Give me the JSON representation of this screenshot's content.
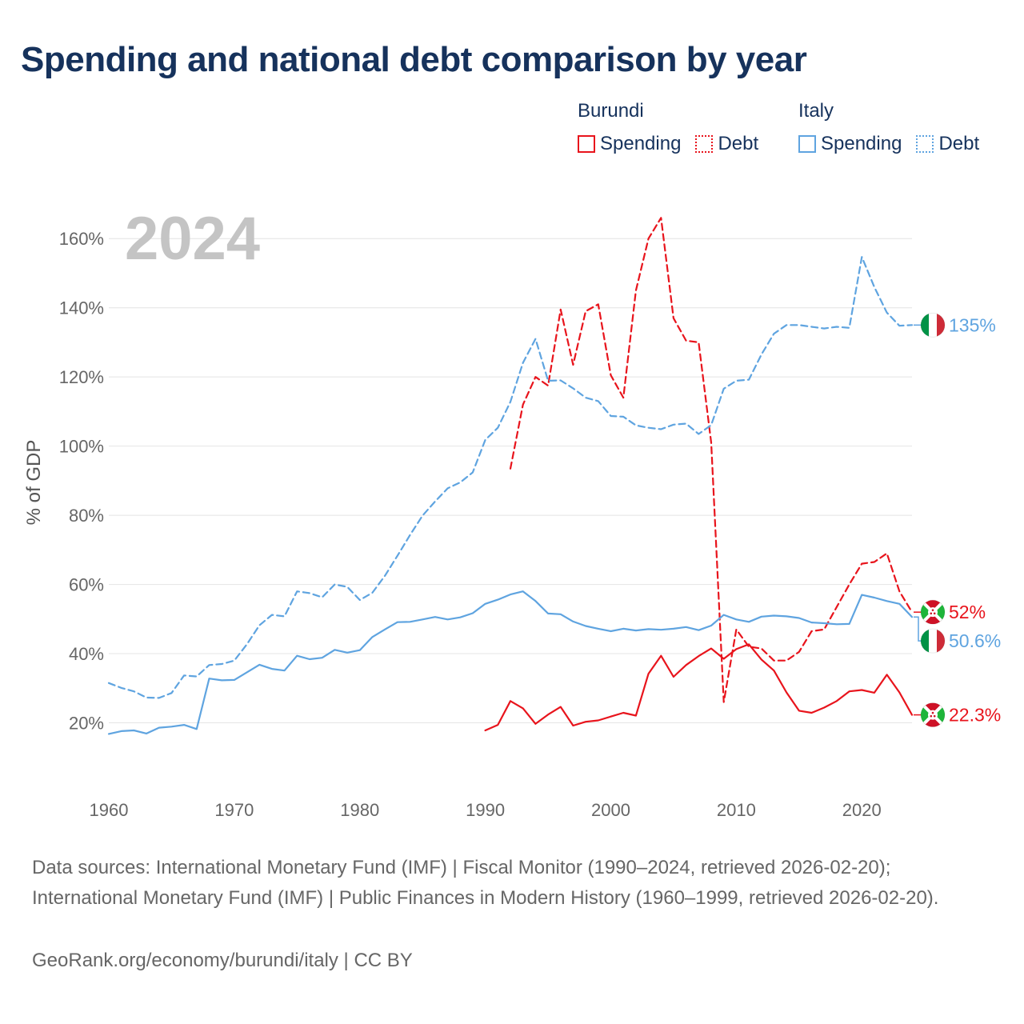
{
  "title": "Spending and national debt comparison by year",
  "legend": {
    "groups": [
      {
        "name": "Burundi",
        "color": "#e8141c",
        "items": [
          {
            "label": "Spending",
            "style": "solid"
          },
          {
            "label": "Debt",
            "style": "dotted"
          }
        ]
      },
      {
        "name": "Italy",
        "color": "#5fa4e0",
        "items": [
          {
            "label": "Spending",
            "style": "solid"
          },
          {
            "label": "Debt",
            "style": "dotted"
          }
        ]
      }
    ]
  },
  "chart_data": {
    "type": "line",
    "year_label": "2024",
    "ylabel": "% of GDP",
    "xlim": [
      1960,
      2024
    ],
    "ylim": [
      0,
      170
    ],
    "x_ticks": [
      1960,
      1970,
      1980,
      1990,
      2000,
      2010,
      2020
    ],
    "y_ticks": [
      20,
      40,
      60,
      80,
      100,
      120,
      140,
      160
    ],
    "y_tick_labels": [
      "20%",
      "40%",
      "60%",
      "80%",
      "100%",
      "120%",
      "140%",
      "160%"
    ],
    "series": [
      {
        "name": "Burundi Spending",
        "country": "Burundi",
        "metric": "Spending",
        "color": "#e8141c",
        "dash": "solid",
        "flag_icon": "burundi-flag-icon",
        "end_label": "22.3%",
        "x": [
          1990,
          1991,
          1992,
          1993,
          1994,
          1995,
          1996,
          1997,
          1998,
          1999,
          2000,
          2001,
          2002,
          2003,
          2004,
          2005,
          2006,
          2007,
          2008,
          2009,
          2010,
          2011,
          2012,
          2013,
          2014,
          2015,
          2016,
          2017,
          2018,
          2019,
          2020,
          2021,
          2022,
          2023,
          2024
        ],
        "values": [
          17.8,
          19.4,
          26.3,
          24.2,
          19.7,
          22.4,
          24.6,
          19.2,
          20.3,
          20.7,
          21.8,
          22.9,
          22.1,
          34.2,
          39.4,
          33.3,
          36.7,
          39.3,
          41.5,
          38.5,
          41.3,
          42.7,
          38.3,
          35.1,
          28.8,
          23.5,
          22.9,
          24.4,
          26.3,
          29.1,
          29.5,
          28.7,
          33.9,
          28.8,
          22.3
        ]
      },
      {
        "name": "Burundi Debt",
        "country": "Burundi",
        "metric": "Debt",
        "color": "#e8141c",
        "dash": "dashed",
        "flag_icon": "burundi-flag-icon",
        "end_label": "52%",
        "x": [
          1992,
          1993,
          1994,
          1995,
          1996,
          1997,
          1998,
          1999,
          2000,
          2001,
          2002,
          2003,
          2004,
          2005,
          2006,
          2007,
          2008,
          2009,
          2010,
          2011,
          2012,
          2013,
          2014,
          2015,
          2016,
          2017,
          2018,
          2019,
          2020,
          2021,
          2022,
          2023,
          2024
        ],
        "values": [
          93.5,
          112.0,
          120.0,
          117.5,
          139.5,
          123.5,
          139.0,
          141.0,
          120.5,
          114.0,
          145.0,
          160.0,
          166.0,
          137.0,
          130.5,
          130.0,
          101.0,
          26.0,
          47.0,
          42.0,
          41.5,
          38.0,
          38.0,
          40.5,
          46.5,
          47.0,
          53.5,
          60.0,
          66.0,
          66.5,
          69.0,
          58.0,
          52.0
        ]
      },
      {
        "name": "Italy Spending",
        "country": "Italy",
        "metric": "Spending",
        "color": "#5fa4e0",
        "dash": "solid",
        "flag_icon": "italy-flag-icon",
        "end_label": "50.6%",
        "x": [
          1960,
          1961,
          1962,
          1963,
          1964,
          1965,
          1966,
          1967,
          1968,
          1969,
          1970,
          1971,
          1972,
          1973,
          1974,
          1975,
          1976,
          1977,
          1978,
          1979,
          1980,
          1981,
          1982,
          1983,
          1984,
          1985,
          1986,
          1987,
          1988,
          1989,
          1990,
          1991,
          1992,
          1993,
          1994,
          1995,
          1996,
          1997,
          1998,
          1999,
          2000,
          2001,
          2002,
          2003,
          2004,
          2005,
          2006,
          2007,
          2008,
          2009,
          2010,
          2011,
          2012,
          2013,
          2014,
          2015,
          2016,
          2017,
          2018,
          2019,
          2020,
          2021,
          2022,
          2023,
          2024
        ],
        "values": [
          16.8,
          17.6,
          17.8,
          16.9,
          18.6,
          18.9,
          19.4,
          18.2,
          32.8,
          32.3,
          32.4,
          34.6,
          36.8,
          35.6,
          35.1,
          39.4,
          38.4,
          38.8,
          41.1,
          40.3,
          41.0,
          44.8,
          47.0,
          49.1,
          49.2,
          49.9,
          50.6,
          49.9,
          50.5,
          51.7,
          54.4,
          55.6,
          57.1,
          58.0,
          55.2,
          51.6,
          51.4,
          49.3,
          48.0,
          47.2,
          46.5,
          47.2,
          46.7,
          47.1,
          46.9,
          47.2,
          47.7,
          46.8,
          48.1,
          51.2,
          49.9,
          49.2,
          50.7,
          51.0,
          50.8,
          50.3,
          49.0,
          48.8,
          48.5,
          48.6,
          57.0,
          56.2,
          55.2,
          54.4,
          50.6
        ]
      },
      {
        "name": "Italy Debt",
        "country": "Italy",
        "metric": "Debt",
        "color": "#5fa4e0",
        "dash": "dashed",
        "flag_icon": "italy-flag-icon",
        "end_label": "135%",
        "x": [
          1960,
          1961,
          1962,
          1963,
          1964,
          1965,
          1966,
          1967,
          1968,
          1969,
          1970,
          1971,
          1972,
          1973,
          1974,
          1975,
          1976,
          1977,
          1978,
          1979,
          1980,
          1981,
          1982,
          1983,
          1984,
          1985,
          1986,
          1987,
          1988,
          1989,
          1990,
          1991,
          1992,
          1993,
          1994,
          1995,
          1996,
          1997,
          1998,
          1999,
          2000,
          2001,
          2002,
          2003,
          2004,
          2005,
          2006,
          2007,
          2008,
          2009,
          2010,
          2011,
          2012,
          2013,
          2014,
          2015,
          2016,
          2017,
          2018,
          2019,
          2020,
          2021,
          2022,
          2023,
          2024
        ],
        "values": [
          31.5,
          30.1,
          29.1,
          27.3,
          27.2,
          28.6,
          33.7,
          33.4,
          36.7,
          37.0,
          38.0,
          42.7,
          48.2,
          51.2,
          50.8,
          58.0,
          57.5,
          56.3,
          60.0,
          59.3,
          55.5,
          57.6,
          62.5,
          68.3,
          74.3,
          79.9,
          84.0,
          87.8,
          89.5,
          92.4,
          101.8,
          105.3,
          112.8,
          124.1,
          131.0,
          118.9,
          119.0,
          116.7,
          114.0,
          113.0,
          108.7,
          108.5,
          106.0,
          105.3,
          104.9,
          106.2,
          106.5,
          103.5,
          106.1,
          116.6,
          118.9,
          119.2,
          126.5,
          132.5,
          135.0,
          135.0,
          134.5,
          134.0,
          134.5,
          134.2,
          154.7,
          146.0,
          138.6,
          134.8,
          135.0
        ]
      }
    ]
  },
  "footer": {
    "sources": "Data sources: International Monetary Fund (IMF) | Fiscal Monitor (1990–2024, retrieved 2026-02-20); International Monetary Fund (IMF) | Public Finances in Modern History (1960–1999, retrieved 2026-02-20).",
    "credit": "GeoRank.org/economy/burundi/italy | CC BY"
  }
}
